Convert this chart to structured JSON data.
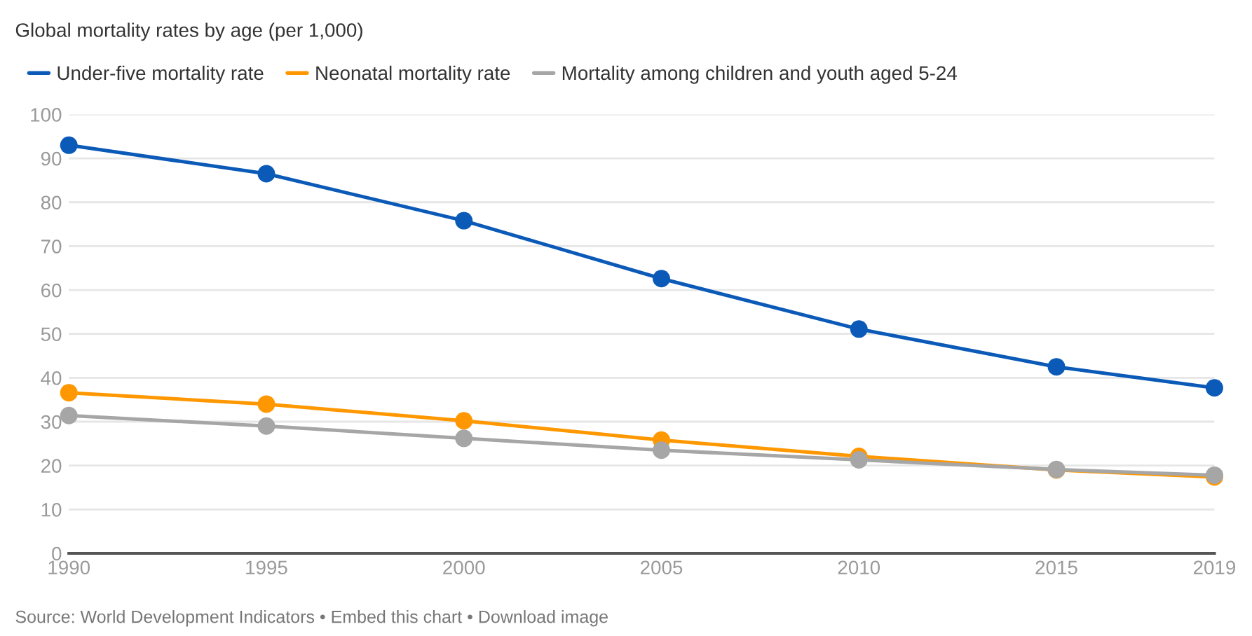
{
  "chart_data": {
    "type": "line",
    "title": "Global mortality rates by age (per 1,000)",
    "x": [
      1990,
      1995,
      2000,
      2005,
      2010,
      2015,
      2019
    ],
    "series": [
      {
        "name": "Under-five mortality rate",
        "color": "#0b5ab8",
        "values": [
          93.0,
          86.5,
          75.8,
          62.6,
          51.1,
          42.5,
          37.7
        ]
      },
      {
        "name": "Neonatal mortality rate",
        "color": "#ff9800",
        "values": [
          36.6,
          34.0,
          30.2,
          25.8,
          22.1,
          19.0,
          17.4
        ]
      },
      {
        "name": "Mortality among children and youth aged 5-24",
        "color": "#a6a6a6",
        "values": [
          31.4,
          29.0,
          26.2,
          23.5,
          21.3,
          19.1,
          17.8
        ]
      }
    ],
    "xlim": [
      1990,
      2019
    ],
    "xticks": [
      1990,
      1995,
      2000,
      2005,
      2010,
      2015,
      2019
    ],
    "ylim": [
      0,
      100
    ],
    "yticks": [
      0,
      10,
      20,
      30,
      40,
      50,
      60,
      70,
      80,
      90,
      100
    ],
    "grid": "y",
    "legend": "top left",
    "marker": "circle",
    "line_style": "solid",
    "annotations": [
      "Source: World Development Indicators • Embed this chart • Download image"
    ]
  }
}
